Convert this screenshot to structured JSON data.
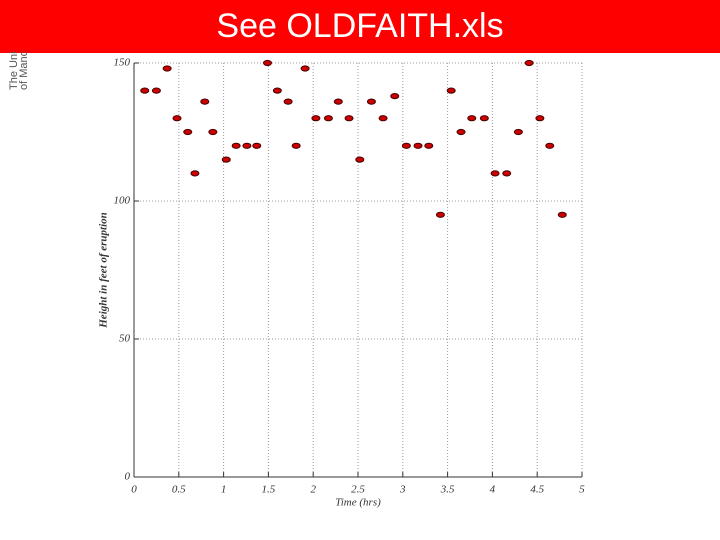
{
  "chart_data": {
    "type": "scatter",
    "title": "See OLDFAITH.xls",
    "logo": [
      "The Uni",
      "of Manc"
    ],
    "x_label": "Time (hrs)",
    "y_label": "Height in feet of eruption",
    "x": [
      0.12,
      0.25,
      0.37,
      0.48,
      0.6,
      0.68,
      0.79,
      0.88,
      1.03,
      1.14,
      1.26,
      1.37,
      1.49,
      1.6,
      1.72,
      1.81,
      1.91,
      2.03,
      2.17,
      2.28,
      2.4,
      2.52,
      2.65,
      2.78,
      2.91,
      3.04,
      3.17,
      3.29,
      3.42,
      3.54,
      3.65,
      3.77,
      3.91,
      4.03,
      4.16,
      4.29,
      4.41,
      4.53,
      4.64,
      4.78
    ],
    "values": [
      140,
      140,
      148,
      130,
      125,
      110,
      136,
      125,
      115,
      120,
      120,
      120,
      150,
      140,
      136,
      120,
      148,
      130,
      130,
      136,
      130,
      115,
      136,
      130,
      138,
      120,
      120,
      120,
      95,
      140,
      125,
      130,
      130,
      110,
      110,
      125,
      150,
      130,
      120,
      95
    ],
    "color": "#cc0000",
    "xlim": [
      0,
      5
    ],
    "xticks": [
      0,
      0.5,
      1,
      1.5,
      2,
      2.5,
      3,
      3.5,
      4,
      4.5,
      5
    ],
    "ylim": [
      0,
      150
    ],
    "yticks": [
      0,
      50,
      100,
      150
    ],
    "grid": true
  }
}
